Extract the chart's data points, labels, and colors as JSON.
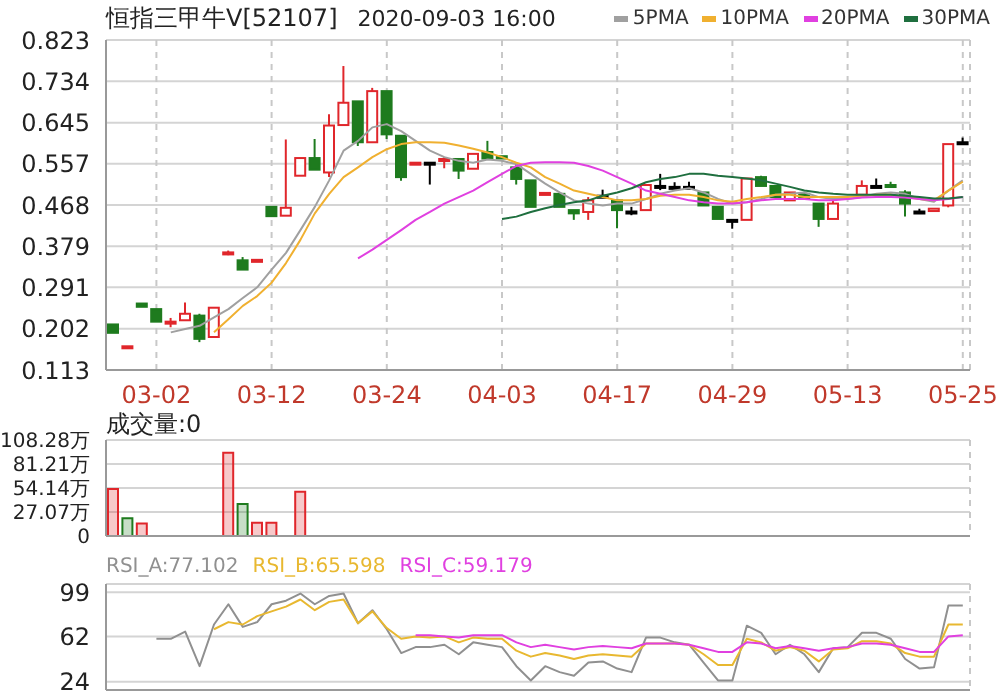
{
  "chart_data": [
    {
      "type": "candlestick",
      "title": "恒指三甲牛V[52107]",
      "subtitle": "2020-09-03 16:00",
      "categories": [
        null,
        null,
        null,
        "03-02",
        null,
        null,
        null,
        null,
        null,
        null,
        null,
        "03-12",
        null,
        null,
        null,
        null,
        null,
        null,
        null,
        "03-24",
        null,
        null,
        null,
        null,
        null,
        null,
        null,
        "04-03",
        null,
        null,
        null,
        null,
        null,
        null,
        null,
        "04-17",
        null,
        null,
        null,
        null,
        null,
        null,
        null,
        "04-29",
        null,
        null,
        null,
        null,
        null,
        null,
        null,
        "05-13",
        null,
        null,
        null,
        null,
        null,
        null,
        null,
        "05-25"
      ],
      "ohlc": [
        [
          0.211,
          0.211,
          0.193,
          0.193
        ],
        [
          0.164,
          0.164,
          0.164,
          0.164
        ],
        [
          0.256,
          0.256,
          0.249,
          0.249
        ],
        [
          0.244,
          0.244,
          0.217,
          0.217
        ],
        [
          0.215,
          0.225,
          0.205,
          0.217
        ],
        [
          0.22,
          0.258,
          0.22,
          0.234
        ],
        [
          0.23,
          0.234,
          0.173,
          0.18
        ],
        [
          0.184,
          0.247,
          0.184,
          0.247
        ],
        [
          0.366,
          0.37,
          0.36,
          0.366
        ],
        [
          0.349,
          0.356,
          0.329,
          0.329
        ],
        [
          0.35,
          0.35,
          0.35,
          0.35
        ],
        [
          0.464,
          0.464,
          0.444,
          0.444
        ],
        [
          0.445,
          0.609,
          0.445,
          0.462
        ],
        [
          0.531,
          0.569,
          0.531,
          0.569
        ],
        [
          0.569,
          0.61,
          0.544,
          0.544
        ],
        [
          0.538,
          0.663,
          0.528,
          0.639
        ],
        [
          0.64,
          0.767,
          0.64,
          0.688
        ],
        [
          0.691,
          0.691,
          0.595,
          0.603
        ],
        [
          0.603,
          0.72,
          0.603,
          0.713
        ],
        [
          0.713,
          0.713,
          0.61,
          0.62
        ],
        [
          0.617,
          0.617,
          0.52,
          0.528
        ],
        [
          0.559,
          0.559,
          0.559,
          0.559
        ],
        [
          0.559,
          0.559,
          0.512,
          0.559
        ],
        [
          0.564,
          0.571,
          0.547,
          0.567
        ],
        [
          0.567,
          0.567,
          0.524,
          0.542
        ],
        [
          0.546,
          0.578,
          0.546,
          0.578
        ],
        [
          0.582,
          0.606,
          0.568,
          0.568
        ],
        [
          0.573,
          0.573,
          0.568,
          0.568
        ],
        [
          0.549,
          0.557,
          0.512,
          0.524
        ],
        [
          0.521,
          0.521,
          0.464,
          0.464
        ],
        [
          0.494,
          0.494,
          0.494,
          0.494
        ],
        [
          0.492,
          0.492,
          0.464,
          0.464
        ],
        [
          0.457,
          0.457,
          0.436,
          0.45
        ],
        [
          0.453,
          0.485,
          0.436,
          0.478
        ],
        [
          0.488,
          0.501,
          0.488,
          0.488
        ],
        [
          0.478,
          0.478,
          0.418,
          0.457
        ],
        [
          0.454,
          0.464,
          0.446,
          0.454
        ],
        [
          0.457,
          0.511,
          0.457,
          0.511
        ],
        [
          0.509,
          0.535,
          0.5,
          0.509
        ],
        [
          0.507,
          0.517,
          0.507,
          0.507
        ],
        [
          0.507,
          0.518,
          0.507,
          0.507
        ],
        [
          0.495,
          0.495,
          0.467,
          0.467
        ],
        [
          0.464,
          0.464,
          0.438,
          0.438
        ],
        [
          0.436,
          0.436,
          0.417,
          0.436
        ],
        [
          0.436,
          0.525,
          0.436,
          0.525
        ],
        [
          0.528,
          0.531,
          0.509,
          0.509
        ],
        [
          0.509,
          0.509,
          0.485,
          0.485
        ],
        [
          0.478,
          0.495,
          0.478,
          0.495
        ],
        [
          0.492,
          0.492,
          0.481,
          0.481
        ],
        [
          0.471,
          0.471,
          0.421,
          0.438
        ],
        [
          0.438,
          0.478,
          0.438,
          0.471
        ],
        null,
        [
          0.49,
          0.521,
          0.49,
          0.509
        ],
        [
          0.509,
          0.525,
          0.509,
          0.509
        ],
        [
          0.511,
          0.518,
          0.507,
          0.507
        ],
        [
          0.495,
          0.5,
          0.443,
          0.471
        ],
        [
          0.454,
          0.46,
          0.45,
          0.454
        ],
        [
          0.455,
          0.46,
          0.455,
          0.46
        ],
        [
          0.467,
          0.599,
          0.463,
          0.599
        ],
        [
          0.603,
          0.613,
          0.603,
          0.603
        ]
      ],
      "colors": [
        "#1e7b1e",
        "#e0262b",
        "#1e7b1e",
        "#1e7b1e",
        "#e0262b",
        "#e0262b",
        "#1e7b1e",
        "#e0262b",
        "#e0262b",
        "#1e7b1e",
        "#e0262b",
        "#1e7b1e",
        "#e0262b",
        "#e0262b",
        "#1e7b1e",
        "#e0262b",
        "#e0262b",
        "#1e7b1e",
        "#e0262b",
        "#1e7b1e",
        "#1e7b1e",
        "#e0262b",
        "#000000",
        "#e0262b",
        "#1e7b1e",
        "#e0262b",
        "#1e7b1e",
        "#1e7b1e",
        "#1e7b1e",
        "#1e7b1e",
        "#e0262b",
        "#1e7b1e",
        "#1e7b1e",
        "#e0262b",
        "#000000",
        "#1e7b1e",
        "#000000",
        "#e0262b",
        "#000000",
        "#000000",
        "#000000",
        "#1e7b1e",
        "#1e7b1e",
        "#000000",
        "#e0262b",
        "#1e7b1e",
        "#1e7b1e",
        "#e0262b",
        "#1e7b1e",
        "#1e7b1e",
        "#e0262b",
        "#e0262b",
        "#e0262b",
        "#000000",
        "#1e7b1e",
        "#1e7b1e",
        "#000000",
        "#e0262b",
        "#e0262b",
        "#000000"
      ],
      "series": [
        {
          "type": "line",
          "name": "5PMA",
          "color": "#a0a0a0",
          "values": [
            null,
            null,
            null,
            null,
            0.194,
            0.201,
            0.208,
            0.226,
            0.244,
            0.268,
            0.291,
            0.329,
            0.365,
            0.414,
            0.464,
            0.521,
            0.585,
            0.606,
            0.635,
            0.642,
            0.627,
            0.606,
            0.585,
            0.571,
            0.563,
            0.559,
            0.566,
            0.563,
            0.556,
            0.535,
            0.514,
            0.495,
            0.478,
            0.471,
            0.467,
            0.471,
            0.471,
            0.481,
            0.492,
            0.499,
            0.504,
            0.495,
            0.481,
            0.471,
            0.474,
            0.481,
            0.49,
            0.492,
            0.495,
            0.485,
            0.481,
            0.481,
            0.485,
            0.492,
            0.495,
            0.492,
            0.481,
            0.475,
            0.499,
            0.521
          ]
        },
        {
          "type": "line",
          "name": "10PMA",
          "color": "#f0b030",
          "values": [
            null,
            null,
            null,
            null,
            null,
            null,
            null,
            0.194,
            0.222,
            0.251,
            0.272,
            0.301,
            0.343,
            0.393,
            0.45,
            0.492,
            0.528,
            0.549,
            0.571,
            0.588,
            0.599,
            0.603,
            0.603,
            0.602,
            0.596,
            0.589,
            0.581,
            0.571,
            0.559,
            0.549,
            0.528,
            0.514,
            0.499,
            0.492,
            0.485,
            0.478,
            0.478,
            0.481,
            0.488,
            0.49,
            0.49,
            0.485,
            0.478,
            0.475,
            0.481,
            0.485,
            0.49,
            0.49,
            0.485,
            0.485,
            0.485,
            0.485,
            0.488,
            0.49,
            0.49,
            0.485,
            0.481,
            0.478,
            0.499,
            0.518
          ]
        },
        {
          "type": "line",
          "name": "20PMA",
          "color": "#e040e0",
          "values": [
            null,
            null,
            null,
            null,
            null,
            null,
            null,
            null,
            null,
            null,
            null,
            null,
            null,
            null,
            null,
            null,
            null,
            0.353,
            0.372,
            0.393,
            0.414,
            0.436,
            0.453,
            0.471,
            0.485,
            0.499,
            0.517,
            0.535,
            0.552,
            0.559,
            0.56,
            0.56,
            0.559,
            0.552,
            0.542,
            0.528,
            0.514,
            0.499,
            0.492,
            0.485,
            0.478,
            0.474,
            0.471,
            0.471,
            0.474,
            0.478,
            0.481,
            0.481,
            0.481,
            0.478,
            0.478,
            0.481,
            0.484,
            0.485,
            0.485,
            0.484,
            0.481,
            0.478,
            0.481,
            0.485
          ]
        },
        {
          "type": "line",
          "name": "30PMA",
          "color": "#1f6f3f",
          "values": [
            null,
            null,
            null,
            null,
            null,
            null,
            null,
            null,
            null,
            null,
            null,
            null,
            null,
            null,
            null,
            null,
            null,
            null,
            null,
            null,
            null,
            null,
            null,
            null,
            null,
            null,
            null,
            0.438,
            0.443,
            0.453,
            0.461,
            0.468,
            0.474,
            0.478,
            0.488,
            0.495,
            0.504,
            0.517,
            0.524,
            0.528,
            0.535,
            0.535,
            0.531,
            0.528,
            0.525,
            0.521,
            0.514,
            0.507,
            0.499,
            0.495,
            0.492,
            0.49,
            0.49,
            0.49,
            0.49,
            0.488,
            0.485,
            0.482,
            0.482,
            0.485
          ]
        }
      ],
      "ylim": [
        0.113,
        0.823
      ],
      "yticks": [
        0.113,
        0.202,
        0.291,
        0.379,
        0.468,
        0.557,
        0.645,
        0.734,
        0.823
      ],
      "grid": true,
      "legend": "top right"
    },
    {
      "type": "bar",
      "title": "成交量:0",
      "categories": [
        null,
        null,
        null,
        null,
        null,
        null,
        null,
        null,
        null,
        null,
        null,
        null,
        null,
        null,
        null,
        null,
        null,
        null,
        null,
        null,
        null,
        null,
        null,
        null,
        null,
        null,
        null,
        null,
        null,
        null,
        null,
        null,
        null,
        null,
        null,
        null,
        null,
        null,
        null,
        null,
        null,
        null,
        null,
        null,
        null,
        null,
        null,
        null,
        null,
        null,
        null,
        null,
        null,
        null,
        null,
        null,
        null,
        null,
        null,
        null
      ],
      "values": [
        53,
        20,
        14,
        0,
        0,
        0,
        0,
        0,
        94,
        36,
        15,
        15,
        0,
        50,
        0,
        0,
        0,
        0,
        0,
        0,
        0,
        0,
        0,
        0,
        0,
        0,
        0,
        0,
        0,
        0,
        0,
        0,
        0,
        0,
        0,
        0,
        0,
        0,
        0,
        0,
        0,
        0,
        0,
        0,
        0,
        0,
        0,
        0,
        0,
        0,
        0,
        0,
        0,
        0,
        0,
        0,
        0,
        0,
        0,
        0
      ],
      "colors": [
        "#e0262b",
        "#1e7b1e",
        "#e0262b",
        "#e0262b",
        "#e0262b",
        "#e0262b",
        "#e0262b",
        "#e0262b",
        "#e0262b",
        "#1e7b1e",
        "#e0262b",
        "#e0262b",
        "#e0262b",
        "#e0262b",
        "#e0262b",
        "#e0262b",
        "#e0262b",
        "#e0262b",
        "#e0262b",
        "#e0262b",
        "#e0262b",
        "#e0262b",
        "#e0262b",
        "#e0262b",
        "#e0262b",
        "#e0262b",
        "#e0262b",
        "#e0262b",
        "#e0262b",
        "#e0262b",
        "#e0262b",
        "#e0262b",
        "#e0262b",
        "#e0262b",
        "#e0262b",
        "#e0262b",
        "#e0262b",
        "#e0262b",
        "#e0262b",
        "#e0262b",
        "#e0262b",
        "#e0262b",
        "#e0262b",
        "#e0262b",
        "#e0262b",
        "#e0262b",
        "#e0262b",
        "#e0262b",
        "#e0262b",
        "#e0262b",
        "#e0262b",
        "#e0262b",
        "#e0262b",
        "#e0262b",
        "#e0262b",
        "#e0262b",
        "#e0262b",
        "#e0262b",
        "#e0262b",
        "#e0262b"
      ],
      "ylim": [
        0,
        108.28
      ],
      "yticks": [
        0,
        {
          "value": 27.07,
          "label": "27.07万"
        },
        {
          "value": 54.14,
          "label": "54.14万"
        },
        {
          "value": 81.21,
          "label": "81.21万"
        },
        {
          "value": 108.28,
          "label": "108.28万"
        }
      ],
      "grid": true,
      "tick_labels": "y"
    },
    {
      "type": "line",
      "categories": [
        null,
        null,
        null,
        null,
        null,
        null,
        null,
        null,
        null,
        null,
        null,
        null,
        null,
        null,
        null,
        null,
        null,
        null,
        null,
        null,
        null,
        null,
        null,
        null,
        null,
        null,
        null,
        null,
        null,
        null,
        null,
        null,
        null,
        null,
        null,
        null,
        null,
        null,
        null,
        null,
        null,
        null,
        null,
        null,
        null,
        null,
        null,
        null,
        null,
        null,
        null,
        null,
        null,
        null,
        null,
        null,
        null,
        null,
        null,
        null
      ],
      "series": [
        {
          "name": "RSI_A:77.102",
          "color": "#909090",
          "values": [
            null,
            null,
            null,
            60,
            60,
            66,
            37,
            72,
            89,
            70,
            74,
            89,
            92,
            98,
            89,
            96,
            98,
            73,
            84,
            68,
            48,
            53,
            53,
            55,
            47,
            57,
            55,
            53,
            37,
            25,
            37,
            32,
            29,
            40,
            41,
            35,
            32,
            61,
            61,
            57,
            55,
            40,
            25,
            25,
            71,
            65,
            47,
            55,
            47,
            32,
            52,
            53,
            65,
            65,
            60,
            43,
            35,
            36,
            88,
            88
          ]
        },
        {
          "name": "RSI_B:65.598",
          "color": "#e8b830",
          "values": [
            null,
            null,
            null,
            null,
            null,
            null,
            null,
            68,
            74,
            72,
            79,
            83,
            87,
            93,
            84,
            91,
            93,
            73,
            83,
            69,
            60,
            62,
            61,
            62,
            57,
            61,
            60,
            60,
            50,
            45,
            48,
            46,
            43,
            46,
            47,
            46,
            45,
            56,
            56,
            56,
            55,
            47,
            38,
            38,
            60,
            57,
            50,
            53,
            50,
            41,
            51,
            52,
            58,
            58,
            56,
            48,
            45,
            45,
            72,
            72
          ]
        },
        {
          "name": "RSI_C:59.179",
          "color": "#e040e0",
          "values": [
            null,
            null,
            null,
            null,
            null,
            null,
            null,
            null,
            null,
            null,
            null,
            null,
            null,
            null,
            null,
            null,
            null,
            null,
            null,
            null,
            null,
            63,
            63,
            62,
            61,
            63,
            63,
            63,
            57,
            53,
            55,
            53,
            51,
            53,
            54,
            53,
            52,
            56,
            56,
            56,
            55,
            52,
            49,
            49,
            57,
            56,
            52,
            54,
            52,
            50,
            52,
            53,
            56,
            56,
            55,
            52,
            49,
            49,
            62,
            63
          ]
        }
      ],
      "ylim": [
        17,
        106
      ],
      "yticks": [
        24,
        62,
        99
      ],
      "grid": true,
      "legend": "top left",
      "tick_labels": "y"
    }
  ]
}
